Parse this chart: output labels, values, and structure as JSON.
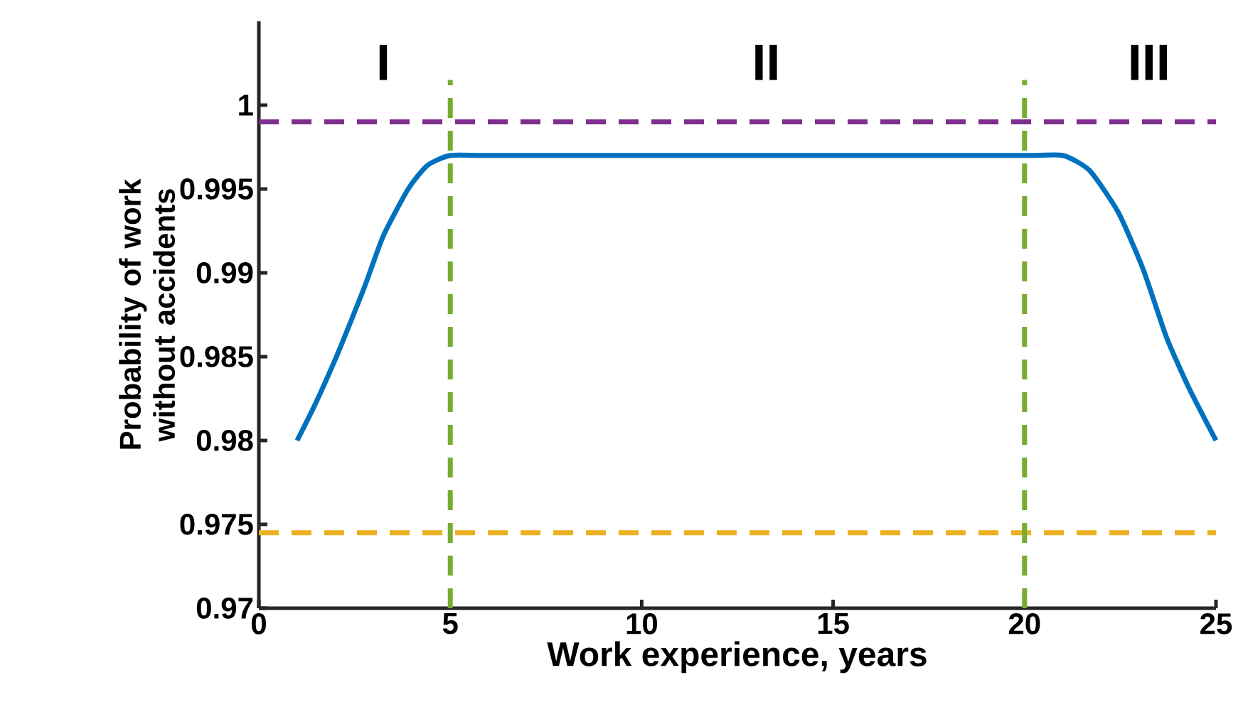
{
  "chart_data": {
    "type": "line",
    "xlabel": "Work experience, years",
    "ylabel": "Probability of work without accidents",
    "xlim": [
      0,
      25
    ],
    "ylim": [
      0.97,
      1.005
    ],
    "xticks": [
      0,
      5,
      10,
      15,
      20,
      25
    ],
    "yticks": [
      0.97,
      0.975,
      0.98,
      0.985,
      0.99,
      0.995,
      1
    ],
    "grid": false,
    "marker": "none",
    "line_style": "solid",
    "series": [
      {
        "color": "#0072bd",
        "x": [
          1,
          1.5,
          2.1,
          2.75,
          3.25,
          3.9,
          4.4,
          5,
          6,
          10,
          15,
          20,
          21,
          21.7,
          22.45,
          23.1,
          23.7,
          24.3,
          25
        ],
        "values": [
          0.98,
          0.9823,
          0.9854,
          0.9891,
          0.9922,
          0.995,
          0.9964,
          0.997,
          0.997,
          0.997,
          0.997,
          0.997,
          0.997,
          0.9961,
          0.9936,
          0.9902,
          0.9862,
          0.9831,
          0.98
        ]
      }
    ],
    "ref_lines": [
      {
        "axis": "y",
        "value": 0.999,
        "color": "#7e2f8e",
        "line_style": "dashed"
      },
      {
        "axis": "y",
        "value": 0.9745,
        "color": "#edb120",
        "line_style": "dashed"
      },
      {
        "axis": "x",
        "value": 5,
        "color": "#77ac30",
        "line_style": "dashed"
      },
      {
        "axis": "x",
        "value": 20,
        "color": "#77ac30",
        "line_style": "dashed"
      }
    ],
    "annotations": [
      "I",
      "II",
      "III"
    ]
  }
}
